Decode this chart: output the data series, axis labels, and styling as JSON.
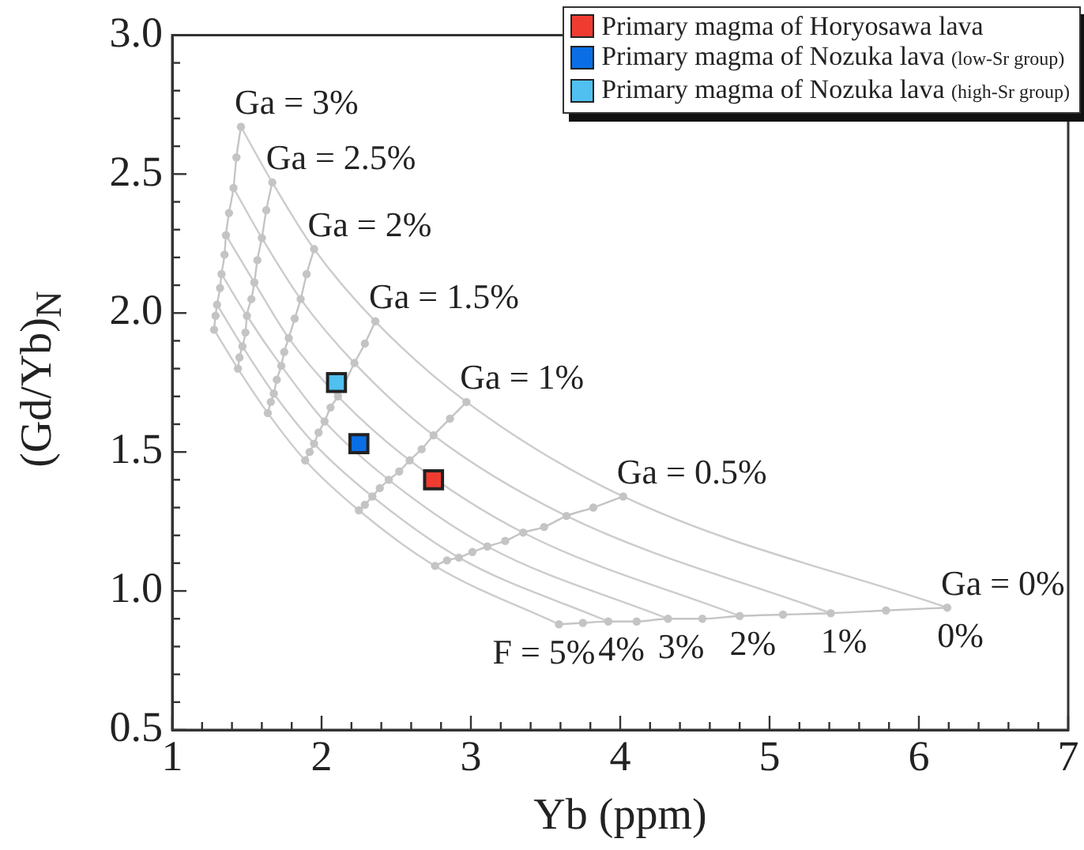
{
  "chart_data": {
    "type": "scatter",
    "xlabel": "Yb (ppm)",
    "ylabel": "(Gd/Yb)$_{N}$",
    "xlim": [
      1,
      7
    ],
    "ylim": [
      0.5,
      3.0
    ],
    "xticks": [
      1,
      {
        "value": 1.2,
        "label": null
      },
      {
        "value": 1.4,
        "label": null
      },
      {
        "value": 1.6,
        "label": null
      },
      {
        "value": 1.8,
        "label": null
      },
      2,
      {
        "value": 2.2,
        "label": null
      },
      {
        "value": 2.4,
        "label": null
      },
      {
        "value": 2.6,
        "label": null
      },
      {
        "value": 2.8,
        "label": null
      },
      3,
      {
        "value": 3.2,
        "label": null
      },
      {
        "value": 3.4,
        "label": null
      },
      {
        "value": 3.6,
        "label": null
      },
      {
        "value": 3.8,
        "label": null
      },
      4,
      {
        "value": 4.2,
        "label": null
      },
      {
        "value": 4.4,
        "label": null
      },
      {
        "value": 4.6,
        "label": null
      },
      {
        "value": 4.8,
        "label": null
      },
      5,
      {
        "value": 5.2,
        "label": null
      },
      {
        "value": 5.4,
        "label": null
      },
      {
        "value": 5.6,
        "label": null
      },
      {
        "value": 5.8,
        "label": null
      },
      6,
      {
        "value": 6.2,
        "label": null
      },
      {
        "value": 6.4,
        "label": null
      },
      {
        "value": 6.6,
        "label": null
      },
      {
        "value": 6.8,
        "label": null
      },
      7
    ],
    "yticks": [
      0.5,
      {
        "value": 0.6,
        "label": null
      },
      {
        "value": 0.7,
        "label": null
      },
      {
        "value": 0.8,
        "label": null
      },
      {
        "value": 0.9,
        "label": null
      },
      {
        "value": 1,
        "label": "1.0"
      },
      {
        "value": 1.1,
        "label": null
      },
      {
        "value": 1.2,
        "label": null
      },
      {
        "value": 1.3,
        "label": null
      },
      {
        "value": 1.4,
        "label": null
      },
      1.5,
      {
        "value": 1.6,
        "label": null
      },
      {
        "value": 1.7,
        "label": null
      },
      {
        "value": 1.8,
        "label": null
      },
      {
        "value": 1.9,
        "label": null
      },
      {
        "value": 2,
        "label": "2.0"
      },
      {
        "value": 2.1,
        "label": null
      },
      {
        "value": 2.2,
        "label": null
      },
      {
        "value": 2.3,
        "label": null
      },
      {
        "value": 2.4,
        "label": null
      },
      2.5,
      {
        "value": 2.6,
        "label": null
      },
      {
        "value": 2.7,
        "label": null
      },
      {
        "value": 2.8,
        "label": null
      },
      {
        "value": 2.9,
        "label": null
      },
      {
        "value": 3,
        "label": "3.0"
      }
    ],
    "grid": false,
    "legend": "top right",
    "series": [
      {
        "name": "Ga = 0%",
        "type": "line",
        "marker": "circle",
        "color": "#c4c4c4",
        "x": [
          3.59,
          3.75,
          3.92,
          4.11,
          4.32,
          4.55,
          4.8,
          5.09,
          5.41,
          5.78,
          6.19
        ],
        "values": [
          0.88,
          0.885,
          0.89,
          0.89,
          0.9,
          0.9,
          0.91,
          0.915,
          0.92,
          0.93,
          0.94
        ]
      },
      {
        "name": "Ga = 0.5%",
        "type": "line",
        "marker": "circle",
        "color": "#c4c4c4",
        "x": [
          2.76,
          2.84,
          2.92,
          3.01,
          3.11,
          3.23,
          3.35,
          3.49,
          3.64,
          3.82,
          4.02
        ],
        "values": [
          1.09,
          1.11,
          1.12,
          1.14,
          1.16,
          1.18,
          1.21,
          1.23,
          1.27,
          1.3,
          1.34
        ]
      },
      {
        "name": "Ga = 1%",
        "type": "line",
        "marker": "circle",
        "color": "#c4c4c4",
        "x": [
          2.25,
          2.29,
          2.34,
          2.39,
          2.45,
          2.52,
          2.59,
          2.67,
          2.75,
          2.86,
          2.97
        ],
        "values": [
          1.29,
          1.31,
          1.34,
          1.37,
          1.4,
          1.43,
          1.47,
          1.51,
          1.56,
          1.62,
          1.68
        ]
      },
      {
        "name": "Ga = 1.5%",
        "type": "line",
        "marker": "circle",
        "color": "#c4c4c4",
        "x": [
          1.89,
          1.92,
          1.95,
          1.98,
          2.02,
          2.06,
          2.11,
          2.16,
          2.22,
          2.29,
          2.36
        ],
        "values": [
          1.47,
          1.5,
          1.53,
          1.57,
          1.61,
          1.66,
          1.7,
          null,
          1.82,
          1.89,
          1.97
        ]
      },
      {
        "name": "Ga = 2%",
        "type": "line",
        "marker": "circle",
        "color": "#c4c4c4",
        "x": [
          1.64,
          1.66,
          1.68,
          1.7,
          1.73,
          1.75,
          1.78,
          1.82,
          1.86,
          1.9,
          1.95
        ],
        "values": [
          1.64,
          1.68,
          1.71,
          1.76,
          1.81,
          1.86,
          1.91,
          1.98,
          2.05,
          2.14,
          2.23
        ]
      },
      {
        "name": "Ga = 2.5%",
        "type": "line",
        "marker": "circle",
        "color": "#c4c4c4",
        "x": [
          1.44,
          1.45,
          1.47,
          1.49,
          1.5,
          1.53,
          1.55,
          1.57,
          1.6,
          1.63,
          1.67
        ],
        "values": [
          1.8,
          1.84,
          1.88,
          1.93,
          1.99,
          2.05,
          2.11,
          2.19,
          2.27,
          2.37,
          2.47
        ]
      },
      {
        "name": "Ga = 3%",
        "type": "line",
        "marker": "circle",
        "color": "#c4c4c4",
        "x": [
          1.28,
          1.29,
          1.3,
          1.32,
          1.33,
          1.35,
          1.36,
          1.38,
          1.41,
          1.43,
          1.46
        ],
        "values": [
          1.94,
          1.99,
          2.03,
          2.09,
          2.14,
          2.21,
          2.28,
          2.36,
          2.45,
          2.56,
          2.67
        ]
      },
      {
        "name": "0%",
        "type": "line",
        "marker": "none",
        "color": "#cccccc",
        "x": [
          6.19,
          4.02,
          2.97,
          2.36,
          1.95,
          1.67,
          1.46
        ],
        "values": [
          0.94,
          1.34,
          1.68,
          1.97,
          2.23,
          2.47,
          2.67
        ]
      },
      {
        "name": "1%",
        "type": "line",
        "marker": "none",
        "color": "#cccccc",
        "x": [
          5.41,
          3.64,
          2.75,
          2.22,
          1.86,
          1.6,
          1.41
        ],
        "values": [
          0.92,
          1.27,
          1.56,
          1.82,
          2.05,
          2.27,
          2.45
        ]
      },
      {
        "name": "2%",
        "type": "line",
        "marker": "none",
        "color": "#cccccc",
        "x": [
          4.8,
          3.35,
          2.59,
          2.11,
          1.78,
          1.55,
          1.36
        ],
        "values": [
          0.91,
          1.21,
          1.47,
          1.7,
          1.91,
          2.11,
          2.28
        ]
      },
      {
        "name": "3%",
        "type": "line",
        "marker": "none",
        "color": "#cccccc",
        "x": [
          4.32,
          3.11,
          2.45,
          2.02,
          1.73,
          1.5,
          1.33
        ],
        "values": [
          0.9,
          1.16,
          1.4,
          1.61,
          1.81,
          1.99,
          2.14
        ]
      },
      {
        "name": "4%",
        "type": "line",
        "marker": "none",
        "color": "#cccccc",
        "x": [
          3.92,
          2.92,
          2.34,
          1.95,
          1.68,
          1.47,
          1.3
        ],
        "values": [
          0.89,
          1.12,
          1.34,
          1.53,
          1.71,
          1.88,
          2.03
        ]
      },
      {
        "name": "F = 5%",
        "type": "line",
        "marker": "none",
        "color": "#cccccc",
        "x": [
          3.59,
          2.76,
          2.25,
          1.89,
          1.64,
          1.44,
          1.28
        ],
        "values": [
          0.88,
          1.09,
          1.29,
          1.47,
          1.64,
          1.8,
          1.94
        ]
      },
      {
        "name": "Primary magma of Horyosawa lava",
        "type": "scatter",
        "marker": "square",
        "color": "#f03c30",
        "x": [
          2.75
        ],
        "values": [
          1.4
        ]
      },
      {
        "name": "Primary magma of Nozuka lava (low-Sr group)",
        "type": "scatter",
        "marker": "square",
        "color": "#0a6ee6",
        "x": [
          2.25
        ],
        "values": [
          1.53
        ]
      },
      {
        "name": "Primary magma of Nozuka lava (high-Sr group)",
        "type": "scatter",
        "marker": "square",
        "color": "#50c0f0",
        "x": [
          2.1
        ],
        "values": [
          1.75
        ]
      }
    ]
  }
}
